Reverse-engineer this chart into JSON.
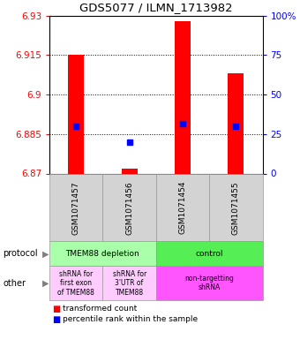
{
  "title": "GDS5077 / ILMN_1713982",
  "samples": [
    "GSM1071457",
    "GSM1071456",
    "GSM1071454",
    "GSM1071455"
  ],
  "red_values": [
    6.915,
    6.872,
    6.928,
    6.908
  ],
  "red_bottoms": [
    6.87,
    6.87,
    6.87,
    6.87
  ],
  "blue_values": [
    6.888,
    6.882,
    6.889,
    6.888
  ],
  "ylim": [
    6.87,
    6.93
  ],
  "yticks_left": [
    6.87,
    6.885,
    6.9,
    6.915,
    6.93
  ],
  "yticks_right": [
    0,
    25,
    50,
    75,
    100
  ],
  "protocol_labels": [
    "TMEM88 depletion",
    "control"
  ],
  "protocol_colors": [
    "#aaffaa",
    "#55ee55"
  ],
  "other_labels": [
    "shRNA for\nfirst exon\nof TMEM88",
    "shRNA for\n3'UTR of\nTMEM88",
    "non-targetting\nshRNA"
  ],
  "other_colors": [
    "#ffccff",
    "#ffccff",
    "#ff55ff"
  ],
  "legend_red": "transformed count",
  "legend_blue": "percentile rank within the sample",
  "bar_width": 0.3
}
